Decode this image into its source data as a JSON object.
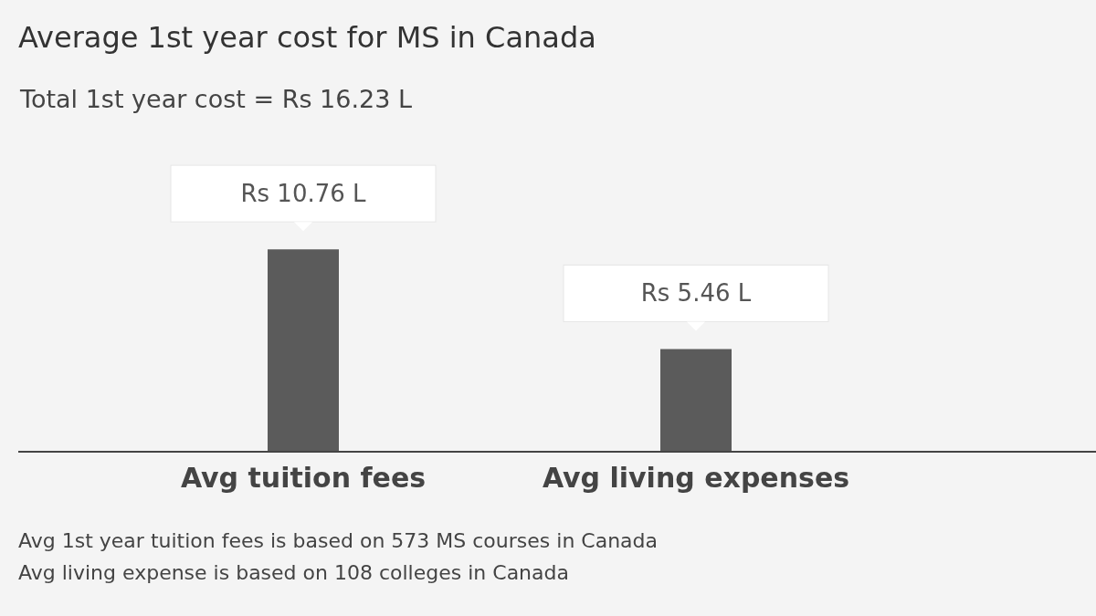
{
  "chart_data": {
    "type": "bar",
    "title": "Average 1st year cost for MS in Canada",
    "subtitle": "Total 1st year cost = Rs 16.23 L",
    "categories": [
      "Avg tuition fees",
      "Avg living expenses"
    ],
    "values": [
      10.76,
      5.46
    ],
    "color": "#5b5b5b",
    "value_labels": [
      "Rs 10.76 L",
      "Rs 5.46 L"
    ],
    "annotations": [
      "Avg 1st year tuition fees is based on 573 MS courses in Canada",
      "Avg living expense is based on 108 colleges in Canada"
    ]
  }
}
